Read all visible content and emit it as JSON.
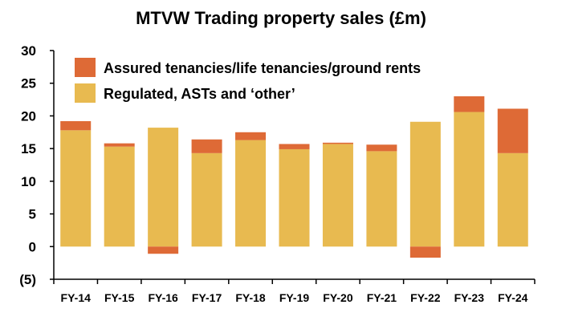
{
  "chart_data": {
    "type": "bar",
    "stacked": true,
    "title": "MTVW Trading property sales (£m)",
    "categories": [
      "FY-14",
      "FY-15",
      "FY-16",
      "FY-17",
      "FY-18",
      "FY-19",
      "FY-20",
      "FY-21",
      "FY-22",
      "FY-23",
      "FY-24"
    ],
    "series": [
      {
        "name": "Regulated, ASTs and ‘other’",
        "color": "#E8BA50",
        "values": [
          17.8,
          15.3,
          18.2,
          14.3,
          16.3,
          14.9,
          15.7,
          14.6,
          19.1,
          20.6,
          14.3
        ]
      },
      {
        "name": "Assured tenancies/life tenancies/ground rents",
        "color": "#DE6A36",
        "values": [
          1.4,
          0.5,
          -1.1,
          2.1,
          1.2,
          0.8,
          0.2,
          1.0,
          -1.7,
          2.4,
          6.8
        ]
      }
    ],
    "ylim": [
      -5,
      30
    ],
    "yticks": [
      {
        "value": 30,
        "label": "30"
      },
      {
        "value": 25,
        "label": "25"
      },
      {
        "value": 20,
        "label": "20"
      },
      {
        "value": 15,
        "label": "15"
      },
      {
        "value": 10,
        "label": "10"
      },
      {
        "value": 5,
        "label": "5"
      },
      {
        "value": 0,
        "label": "0"
      },
      {
        "value": -5,
        "label": "(5)"
      }
    ],
    "legend": {
      "placement": "top-left",
      "order": [
        1,
        0
      ]
    },
    "grid": false
  }
}
